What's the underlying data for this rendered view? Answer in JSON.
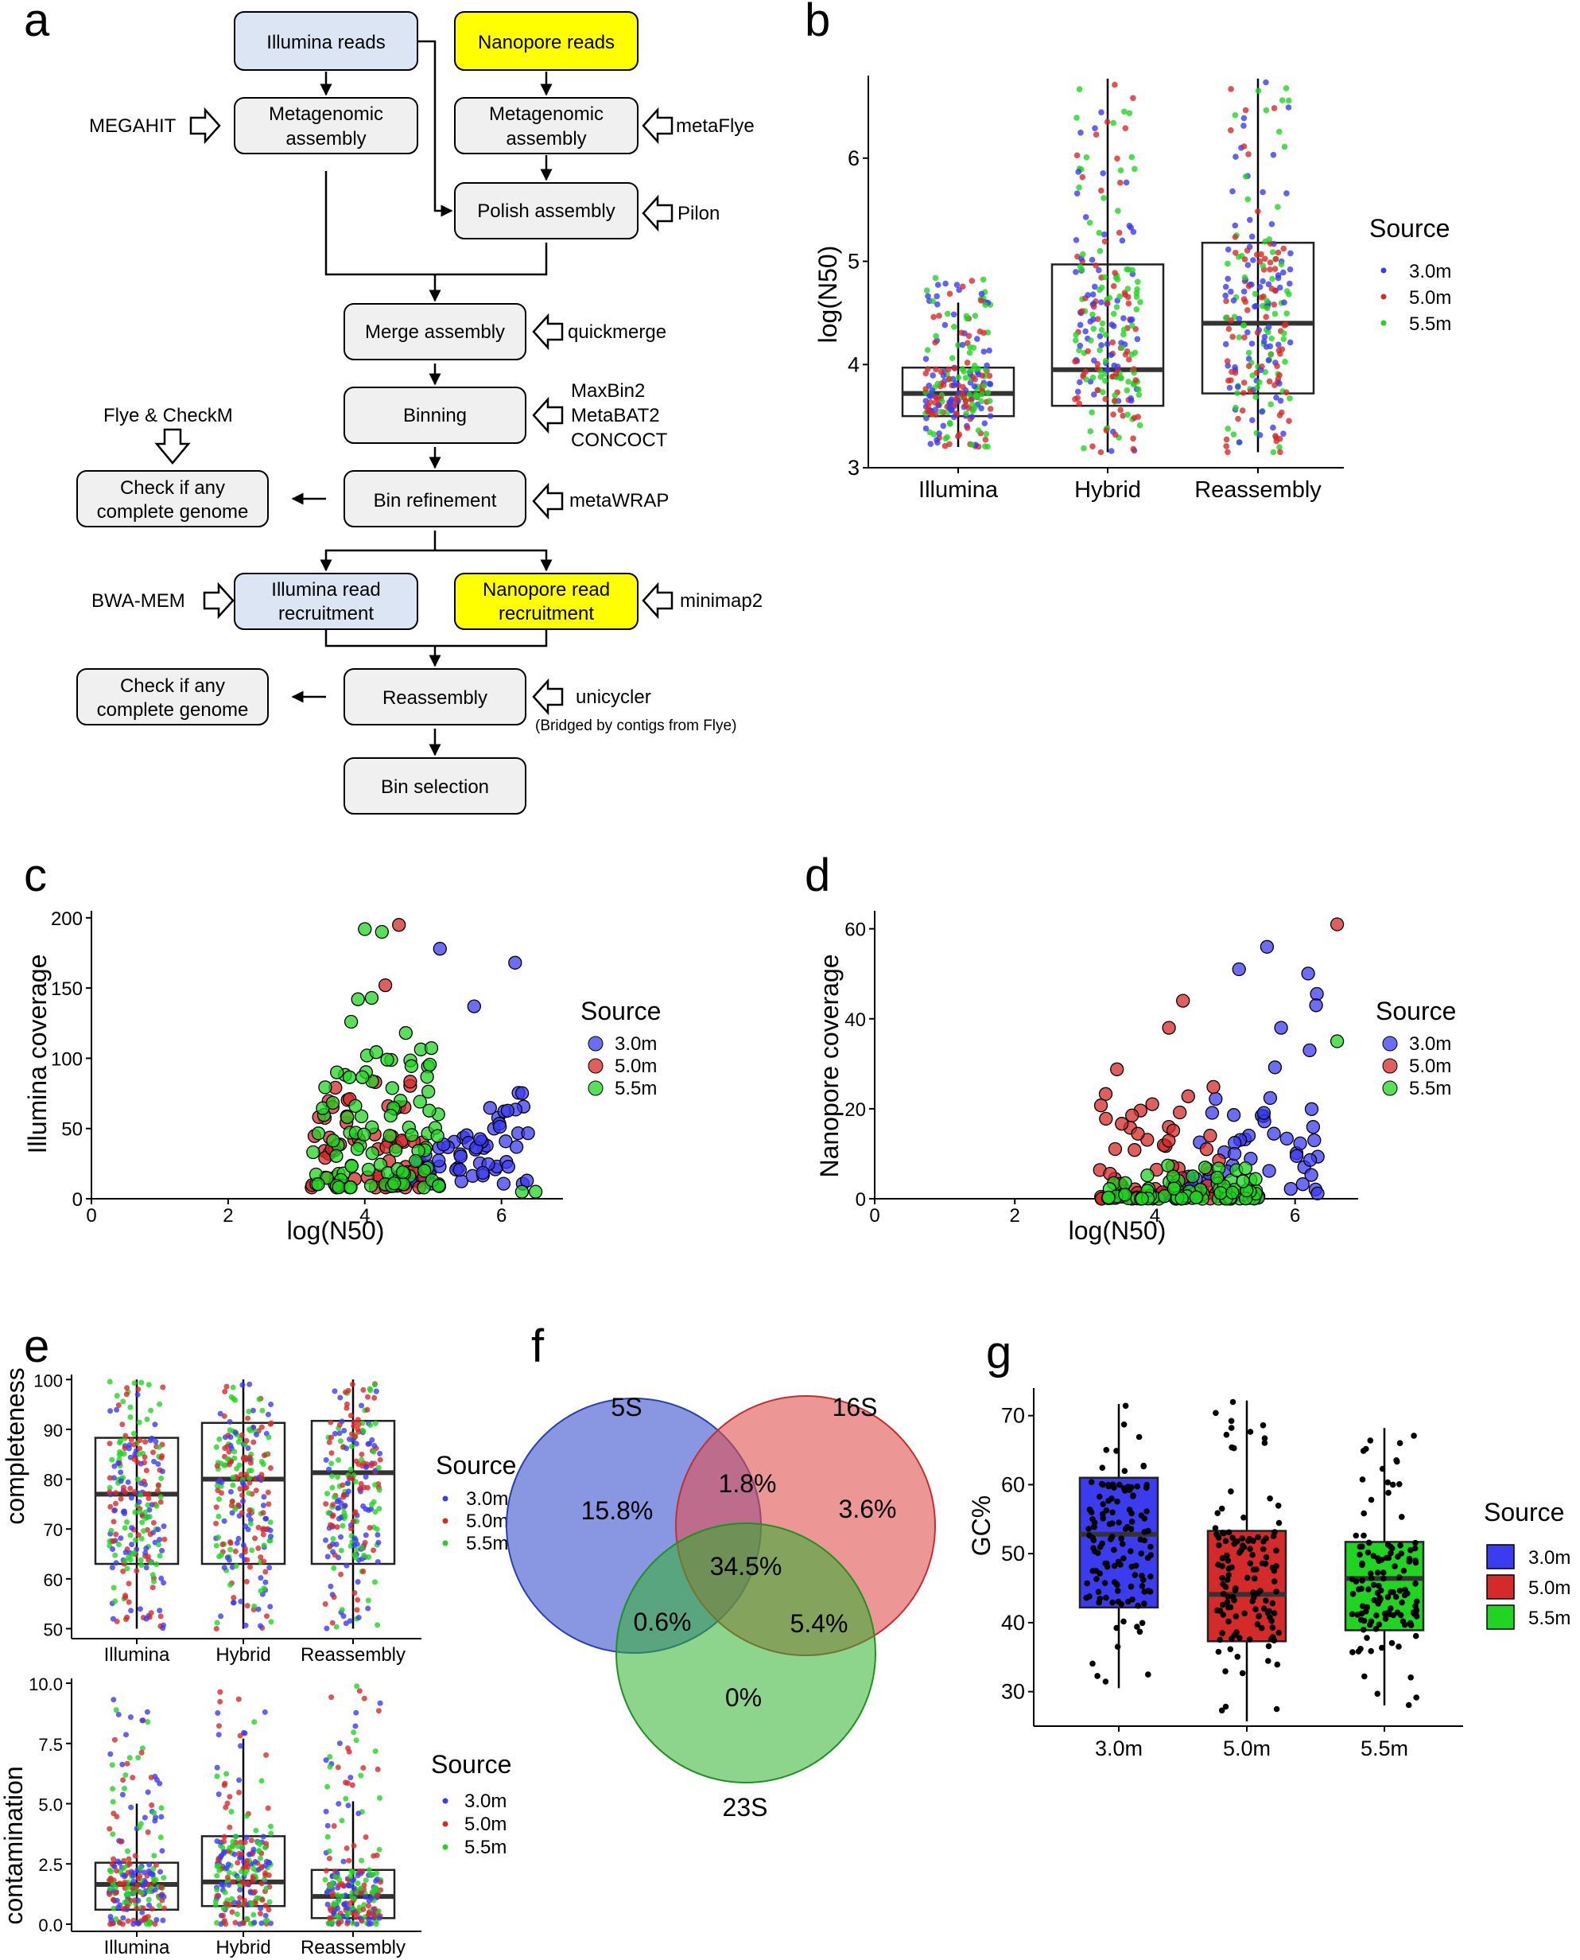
{
  "panel_labels": [
    "a",
    "b",
    "c",
    "d",
    "e",
    "f",
    "g"
  ],
  "colors": {
    "c30": "#3b3bf0",
    "c50": "#d42a2a",
    "c55": "#22d422",
    "illumina_box": "#dbe5f3",
    "nanopore_box": "#ffff00",
    "step_box": "#f0f0f0"
  },
  "flowchart": {
    "boxes": {
      "illumina_reads": "Illumina reads",
      "nanopore_reads": "Nanopore reads",
      "meta_asm_left_1": "Metagenomic",
      "meta_asm_left_2": "assembly",
      "meta_asm_right_1": "Metagenomic",
      "meta_asm_right_2": "assembly",
      "polish": "Polish assembly",
      "merge": "Merge assembly",
      "binning": "Binning",
      "check1_1": "Check if any",
      "check1_2": "complete genome",
      "refine": "Bin refinement",
      "ill_recruit_1": "Illumina read",
      "ill_recruit_2": "recruitment",
      "nano_recruit_1": "Nanopore read",
      "nano_recruit_2": "recruitment",
      "check2_1": "Check if any",
      "check2_2": "complete genome",
      "reassembly": "Reassembly",
      "selection": "Bin selection"
    },
    "tools": {
      "megahit": "MEGAHIT",
      "metaflye": "metaFlye",
      "pilon": "Pilon",
      "quickmerge": "quickmerge",
      "maxbin": "MaxBin2",
      "metabat": "MetaBAT2",
      "concoct": "CONCOCT",
      "flye_checkm": "Flye & CheckM",
      "metawrap": "metaWRAP",
      "bwa": "BWA-MEM",
      "minimap": "minimap2",
      "unicycler": "unicycler",
      "bridged": "(Bridged by contigs from Flye)"
    }
  },
  "chart_data": [
    {
      "id": "b",
      "type": "box+strip",
      "categories": [
        "Illumina",
        "Hybrid",
        "Reassembly"
      ],
      "ylabel": "log(N50)",
      "ylim": [
        3,
        6.8
      ],
      "yticks": [
        3,
        4,
        5,
        6
      ],
      "legend_title": "Source",
      "legend": [
        "3.0m",
        "5.0m",
        "5.5m"
      ],
      "boxes": [
        {
          "q1": 3.5,
          "median": 3.72,
          "q3": 3.97,
          "lo": 3.2,
          "hi": 4.6
        },
        {
          "q1": 3.6,
          "median": 3.95,
          "q3": 4.97,
          "lo": 3.15,
          "hi": 6.77
        },
        {
          "q1": 3.72,
          "median": 4.4,
          "q3": 5.18,
          "lo": 3.15,
          "hi": 6.77
        }
      ],
      "pts_range": [
        [
          3.2,
          4.9
        ],
        [
          3.15,
          6.77
        ],
        [
          3.15,
          6.77
        ]
      ]
    },
    {
      "id": "c",
      "type": "scatter",
      "xlabel": "log(N50)",
      "ylabel": "Illumina coverage",
      "xlim": [
        0,
        6.9
      ],
      "ylim": [
        0,
        205
      ],
      "xticks": [
        0,
        2,
        4,
        6
      ],
      "yticks": [
        0,
        50,
        100,
        150,
        200
      ],
      "legend_title": "Source",
      "legend": [
        "3.0m",
        "5.0m",
        "5.5m"
      ]
    },
    {
      "id": "d",
      "type": "scatter",
      "xlabel": "log(N50)",
      "ylabel": "Nanopore coverage",
      "xlim": [
        0,
        6.9
      ],
      "ylim": [
        0,
        64
      ],
      "xticks": [
        0,
        2,
        4,
        6
      ],
      "yticks": [
        0,
        20,
        40,
        60
      ],
      "legend_title": "Source",
      "legend": [
        "3.0m",
        "5.0m",
        "5.5m"
      ]
    },
    {
      "id": "e_top",
      "type": "box+strip",
      "categories": [
        "Illumina",
        "Hybrid",
        "Reassembly"
      ],
      "ylabel": "completeness",
      "ylim": [
        48,
        101
      ],
      "yticks": [
        50,
        60,
        70,
        80,
        90,
        100
      ],
      "legend_title": "Source",
      "legend": [
        "3.0m",
        "5.0m",
        "5.5m"
      ],
      "boxes": [
        {
          "q1": 63,
          "median": 77,
          "q3": 88.3,
          "lo": 50,
          "hi": 100
        },
        {
          "q1": 63,
          "median": 80,
          "q3": 91.3,
          "lo": 50,
          "hi": 100
        },
        {
          "q1": 63,
          "median": 81.3,
          "q3": 91.7,
          "lo": 50,
          "hi": 100
        }
      ],
      "pts_range": [
        [
          50,
          100
        ],
        [
          50,
          100
        ],
        [
          50,
          100
        ]
      ]
    },
    {
      "id": "e_bottom",
      "type": "box+strip",
      "categories": [
        "Illumina",
        "Hybrid",
        "Reassembly"
      ],
      "ylabel": "contamination",
      "ylim": [
        -0.3,
        10.2
      ],
      "yticks": [
        0.0,
        2.5,
        5.0,
        7.5,
        10.0
      ],
      "ytick_labels": [
        "0.0",
        "2.5",
        "5.0",
        "7.5",
        "10.0"
      ],
      "legend_title": "Source",
      "legend": [
        "3.0m",
        "5.0m",
        "5.5m"
      ],
      "boxes": [
        {
          "q1": 0.6,
          "median": 1.65,
          "q3": 2.55,
          "lo": 0,
          "hi": 5.0
        },
        {
          "q1": 0.75,
          "median": 1.75,
          "q3": 3.65,
          "lo": 0,
          "hi": 7.7
        },
        {
          "q1": 0.25,
          "median": 1.15,
          "q3": 2.25,
          "lo": 0,
          "hi": 5.1
        }
      ],
      "pts_range": [
        [
          0,
          9.6
        ],
        [
          0,
          9.8
        ],
        [
          0,
          9.9
        ]
      ]
    },
    {
      "id": "f",
      "type": "venn",
      "sets": [
        "5S",
        "16S",
        "23S"
      ],
      "regions": {
        "only_5S": "15.8%",
        "only_16S": "3.6%",
        "only_23S": "0%",
        "5S_16S": "1.8%",
        "5S_23S": "0.6%",
        "16S_23S": "5.4%",
        "all": "34.5%"
      }
    },
    {
      "id": "g",
      "type": "box+strip",
      "categories": [
        "3.0m",
        "5.0m",
        "5.5m"
      ],
      "ylabel": "GC%",
      "ylim": [
        25,
        74
      ],
      "yticks": [
        30,
        40,
        50,
        60,
        70
      ],
      "legend_title": "Source",
      "legend": [
        "3.0m",
        "5.0m",
        "5.5m"
      ],
      "boxes": [
        {
          "q1": 42.2,
          "median": 52.8,
          "q3": 61,
          "lo": 30.5,
          "hi": 71.7
        },
        {
          "q1": 37.3,
          "median": 44.1,
          "q3": 53.3,
          "lo": 25.7,
          "hi": 72.2
        },
        {
          "q1": 38.9,
          "median": 46.4,
          "q3": 51.7,
          "lo": 28,
          "hi": 68.2
        }
      ],
      "pts_range": [
        [
          30.5,
          71.7
        ],
        [
          25.7,
          72.2
        ],
        [
          28,
          68.2
        ]
      ]
    }
  ]
}
